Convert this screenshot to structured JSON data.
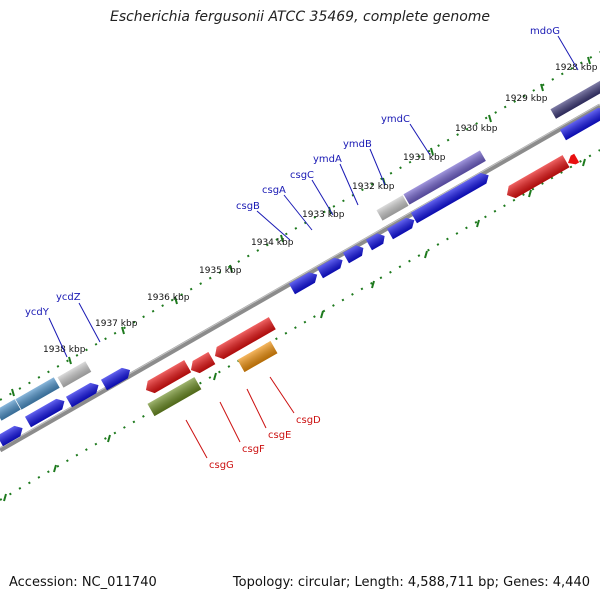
{
  "title": "Escherichia fergusonii ATCC 35469, complete genome",
  "footer": {
    "accession": "Accession: NC_011740",
    "topology": "Topology: circular; Length: 4,588,711 bp; Genes: 4,440"
  },
  "colors": {
    "forward": "#1010e8",
    "reverse": "#e81010",
    "backbone": "#8c8c8c",
    "ticks": "#1e7a1e",
    "orange": "#f0900a",
    "olive": "#6b8c22",
    "purple": "#7060cc",
    "darkpurple": "#3c3878",
    "grey": "#c8c8c8",
    "lightblue": "#4a90c8"
  },
  "ticks": [
    "1928 kbp",
    "1929 kbp",
    "1930 kbp",
    "1931 kbp",
    "1932 kbp",
    "1933 kbp",
    "1934 kbp",
    "1935 kbp",
    "1936 kbp",
    "1937 kbp",
    "1938 kbp"
  ],
  "forward_labels": [
    "mdoG",
    "ymdC",
    "ymdB",
    "ymdA",
    "csgC",
    "csgA",
    "csgB",
    "ycdZ",
    "ycdY"
  ],
  "reverse_labels": [
    "csgD",
    "csgE",
    "csgF",
    "csgG"
  ]
}
